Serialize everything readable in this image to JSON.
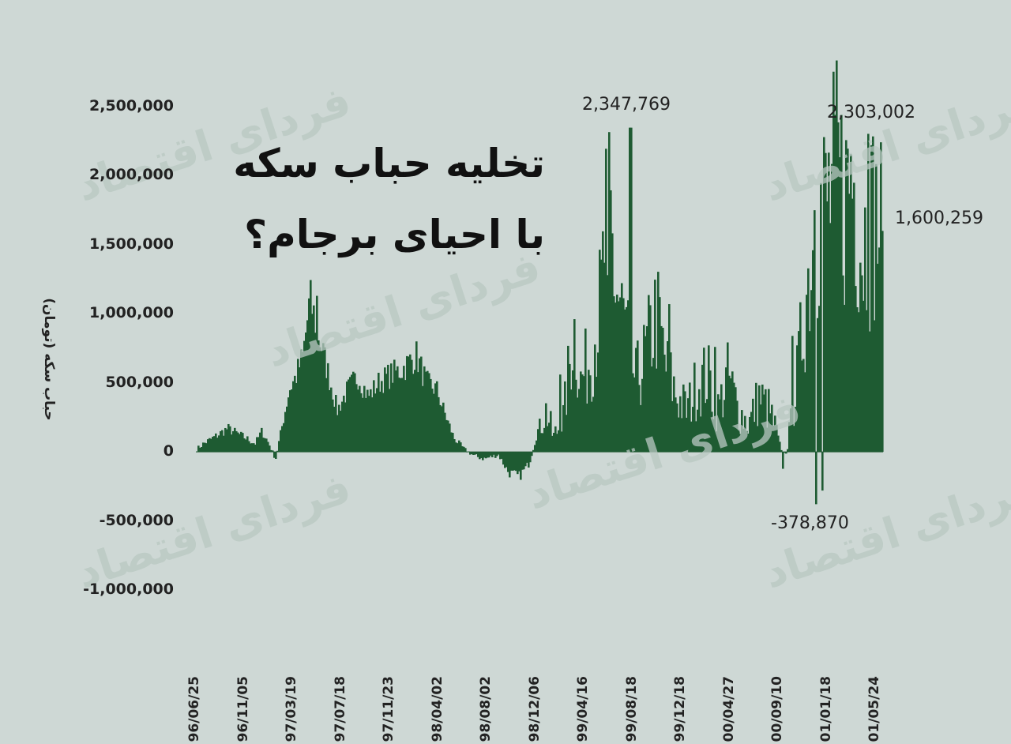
{
  "watermark": "فردای اقتصاد",
  "chart_data": {
    "type": "bar",
    "title_line1": "تخلیه حباب سکه",
    "title_line2": "با احیای برجام؟",
    "ylabel": "حباب سکه (تومان)",
    "ylim": [
      -1000000,
      2500000
    ],
    "yticks": [
      {
        "value": 2500000,
        "label": "2,500,000"
      },
      {
        "value": 2000000,
        "label": "2,000,000"
      },
      {
        "value": 1500000,
        "label": "1,500,000"
      },
      {
        "value": 1000000,
        "label": "1,000,000"
      },
      {
        "value": 500000,
        "label": "500,000"
      },
      {
        "value": 0,
        "label": "0"
      },
      {
        "value": -500000,
        "label": "-500,000"
      },
      {
        "value": -1000000,
        "label": "-1,000,000"
      }
    ],
    "xticks": [
      "96/06/25",
      "96/11/05",
      "97/03/19",
      "97/07/18",
      "97/11/23",
      "98/04/02",
      "98/08/02",
      "98/12/06",
      "99/04/16",
      "99/08/18",
      "99/12/18",
      "00/04/27",
      "00/09/10",
      "01/01/18",
      "01/05/24"
    ],
    "series_color": "#1e5b32",
    "annotations": [
      {
        "label": "2,347,769",
        "value": 2347769
      },
      {
        "label": "2,303,002",
        "value": 2303002
      },
      {
        "label": "1,600,259",
        "value": 1600259
      },
      {
        "label": "-378,870",
        "value": -378870
      }
    ],
    "profile": [
      [
        0,
        20000
      ],
      [
        0.01,
        60000
      ],
      [
        0.03,
        120000
      ],
      [
        0.045,
        170000
      ],
      [
        0.06,
        130000
      ],
      [
        0.075,
        90000
      ],
      [
        0.085,
        60000
      ],
      [
        0.095,
        150000
      ],
      [
        0.105,
        60000
      ],
      [
        0.115,
        -50000
      ],
      [
        0.125,
        200000
      ],
      [
        0.135,
        450000
      ],
      [
        0.145,
        550000
      ],
      [
        0.155,
        700000
      ],
      [
        0.165,
        1100000
      ],
      [
        0.175,
        900000
      ],
      [
        0.19,
        600000
      ],
      [
        0.205,
        300000
      ],
      [
        0.22,
        450000
      ],
      [
        0.235,
        550000
      ],
      [
        0.25,
        400000
      ],
      [
        0.265,
        500000
      ],
      [
        0.28,
        550000
      ],
      [
        0.3,
        600000
      ],
      [
        0.32,
        700000
      ],
      [
        0.335,
        500000
      ],
      [
        0.35,
        450000
      ],
      [
        0.36,
        300000
      ],
      [
        0.375,
        100000
      ],
      [
        0.39,
        20000
      ],
      [
        0.405,
        -30000
      ],
      [
        0.42,
        -50000
      ],
      [
        0.44,
        -20000
      ],
      [
        0.455,
        -150000
      ],
      [
        0.47,
        -180000
      ],
      [
        0.485,
        -80000
      ],
      [
        0.5,
        200000
      ],
      [
        0.51,
        300000
      ],
      [
        0.52,
        100000
      ],
      [
        0.535,
        250000
      ],
      [
        0.55,
        900000
      ],
      [
        0.56,
        500000
      ],
      [
        0.575,
        700000
      ],
      [
        0.59,
        1100000
      ],
      [
        0.6,
        1900000
      ],
      [
        0.61,
        1200000
      ],
      [
        0.625,
        900000
      ],
      [
        0.64,
        500000
      ],
      [
        0.655,
        700000
      ],
      [
        0.67,
        1000000
      ],
      [
        0.685,
        600000
      ],
      [
        0.7,
        400000
      ],
      [
        0.715,
        300000
      ],
      [
        0.73,
        500000
      ],
      [
        0.745,
        550000
      ],
      [
        0.76,
        300000
      ],
      [
        0.775,
        550000
      ],
      [
        0.79,
        300000
      ],
      [
        0.805,
        200000
      ],
      [
        0.82,
        400000
      ],
      [
        0.835,
        300000
      ],
      [
        0.845,
        150000
      ],
      [
        0.855,
        -80000
      ],
      [
        0.865,
        150000
      ],
      [
        0.875,
        500000
      ],
      [
        0.89,
        1200000
      ],
      [
        0.905,
        1700000
      ],
      [
        0.92,
        1800000
      ],
      [
        0.935,
        2000000
      ],
      [
        0.945,
        1800000
      ],
      [
        0.955,
        2100000
      ],
      [
        0.97,
        1500000
      ],
      [
        0.985,
        1700000
      ],
      [
        1,
        1600259
      ]
    ]
  }
}
